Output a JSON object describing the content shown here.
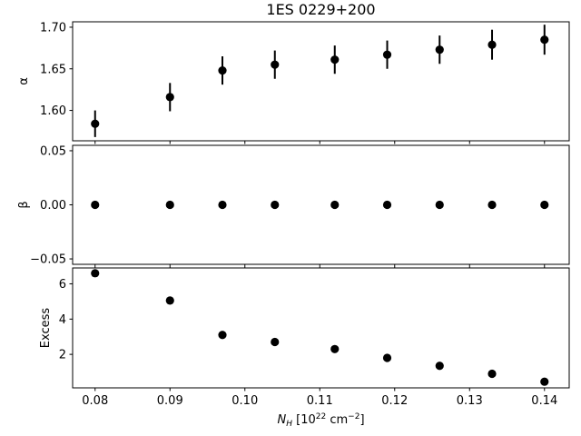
{
  "chart_data": {
    "type": "scatter",
    "title": "1ES 0229+200",
    "x": [
      0.08,
      0.09,
      0.097,
      0.104,
      0.112,
      0.119,
      0.126,
      0.133,
      0.14
    ],
    "x_ticks": [
      "0.08",
      "0.09",
      "0.10",
      "0.11",
      "0.12",
      "0.13",
      "0.14"
    ],
    "x_tick_values": [
      0.08,
      0.09,
      0.1,
      0.11,
      0.12,
      0.13,
      0.14
    ],
    "xlabel": {
      "symbol": "N",
      "subscript": "H",
      "unit_prefix": " [10",
      "exponent": "22",
      "unit_mid": " cm",
      "unit_exp": "−2",
      "unit_suffix": "]"
    },
    "xlim": [
      0.077,
      0.1433
    ],
    "grid": false,
    "marker_color": "#000000",
    "panels": [
      {
        "id": "alpha",
        "ylabel": "α",
        "ylim": [
          1.5635,
          1.7065
        ],
        "y_ticks": [
          "1.60",
          "1.65",
          "1.70"
        ],
        "y_tick_values": [
          1.6,
          1.65,
          1.7
        ],
        "values": [
          1.584,
          1.616,
          1.648,
          1.655,
          1.661,
          1.667,
          1.673,
          1.679,
          1.685
        ],
        "errors": [
          0.016,
          0.017,
          0.017,
          0.017,
          0.017,
          0.017,
          0.017,
          0.018,
          0.018
        ]
      },
      {
        "id": "beta",
        "ylabel": "β",
        "ylim": [
          -0.055,
          0.055
        ],
        "y_ticks": [
          "−0.05",
          "0.00",
          "0.05"
        ],
        "y_tick_values": [
          -0.05,
          0.0,
          0.05
        ],
        "values": [
          0,
          0,
          0,
          0,
          0,
          0,
          0,
          0,
          0
        ],
        "errors": null
      },
      {
        "id": "excess",
        "ylabel": "Excess",
        "ylim": [
          0.1,
          6.9
        ],
        "y_ticks": [
          "2",
          "4",
          "6"
        ],
        "y_tick_values": [
          2,
          4,
          6
        ],
        "values": [
          6.6,
          5.05,
          3.1,
          2.7,
          2.3,
          1.8,
          1.35,
          0.9,
          0.45
        ],
        "errors": null
      }
    ]
  }
}
